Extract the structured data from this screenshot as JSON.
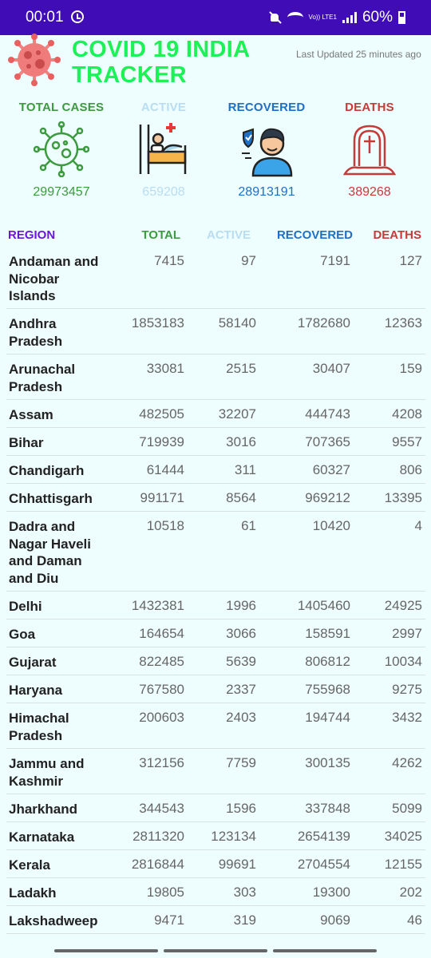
{
  "status_bar": {
    "time": "00:01",
    "volte": "Vo)) LTE1",
    "battery": "60%"
  },
  "header": {
    "title_line1": "COVID 19 INDIA",
    "title_line2": "TRACKER",
    "last_updated": "Last Updated 25 minutes ago"
  },
  "colors": {
    "total": "#3C9A3F",
    "active": "#B9DDF2",
    "recovered": "#1E6FC6",
    "deaths": "#C73A3A",
    "region": "#6A17D8",
    "title": "#1AF255",
    "status_bar": "#3F0CB6"
  },
  "summary": {
    "total": {
      "label": "TOTAL CASES",
      "value": "29973457",
      "icon": "virus-icon"
    },
    "active": {
      "label": "ACTIVE",
      "value": "659208",
      "icon": "hospital-bed-icon"
    },
    "recovered": {
      "label": "RECOVERED",
      "value": "28913191",
      "icon": "recovered-person-icon"
    },
    "deaths": {
      "label": "DEATHS",
      "value": "389268",
      "icon": "grave-icon"
    }
  },
  "table": {
    "headers": {
      "region": "REGION",
      "total": "TOTAL",
      "active": "ACTIVE",
      "recovered": "RECOVERED",
      "deaths": "DEATHS"
    },
    "rows": [
      {
        "region": "Andaman and Nicobar Islands",
        "total": "7415",
        "active": "97",
        "recovered": "7191",
        "deaths": "127"
      },
      {
        "region": "Andhra Pradesh",
        "total": "1853183",
        "active": "58140",
        "recovered": "1782680",
        "deaths": "12363"
      },
      {
        "region": "Arunachal Pradesh",
        "total": "33081",
        "active": "2515",
        "recovered": "30407",
        "deaths": "159"
      },
      {
        "region": "Assam",
        "total": "482505",
        "active": "32207",
        "recovered": "444743",
        "deaths": "4208"
      },
      {
        "region": "Bihar",
        "total": "719939",
        "active": "3016",
        "recovered": "707365",
        "deaths": "9557"
      },
      {
        "region": "Chandigarh",
        "total": "61444",
        "active": "311",
        "recovered": "60327",
        "deaths": "806"
      },
      {
        "region": "Chhattisgarh",
        "total": "991171",
        "active": "8564",
        "recovered": "969212",
        "deaths": "13395"
      },
      {
        "region": "Dadra and Nagar Haveli and Daman and Diu",
        "total": "10518",
        "active": "61",
        "recovered": "10420",
        "deaths": "4"
      },
      {
        "region": "Delhi",
        "total": "1432381",
        "active": "1996",
        "recovered": "1405460",
        "deaths": "24925"
      },
      {
        "region": "Goa",
        "total": "164654",
        "active": "3066",
        "recovered": "158591",
        "deaths": "2997"
      },
      {
        "region": "Gujarat",
        "total": "822485",
        "active": "5639",
        "recovered": "806812",
        "deaths": "10034"
      },
      {
        "region": "Haryana",
        "total": "767580",
        "active": "2337",
        "recovered": "755968",
        "deaths": "9275"
      },
      {
        "region": "Himachal Pradesh",
        "total": "200603",
        "active": "2403",
        "recovered": "194744",
        "deaths": "3432"
      },
      {
        "region": "Jammu and Kashmir",
        "total": "312156",
        "active": "7759",
        "recovered": "300135",
        "deaths": "4262"
      },
      {
        "region": "Jharkhand",
        "total": "344543",
        "active": "1596",
        "recovered": "337848",
        "deaths": "5099"
      },
      {
        "region": "Karnataka",
        "total": "2811320",
        "active": "123134",
        "recovered": "2654139",
        "deaths": "34025"
      },
      {
        "region": "Kerala",
        "total": "2816844",
        "active": "99691",
        "recovered": "2704554",
        "deaths": "12155"
      },
      {
        "region": "Ladakh",
        "total": "19805",
        "active": "303",
        "recovered": "19300",
        "deaths": "202"
      },
      {
        "region": "Lakshadweep",
        "total": "9471",
        "active": "319",
        "recovered": "9069",
        "deaths": "46"
      }
    ]
  }
}
